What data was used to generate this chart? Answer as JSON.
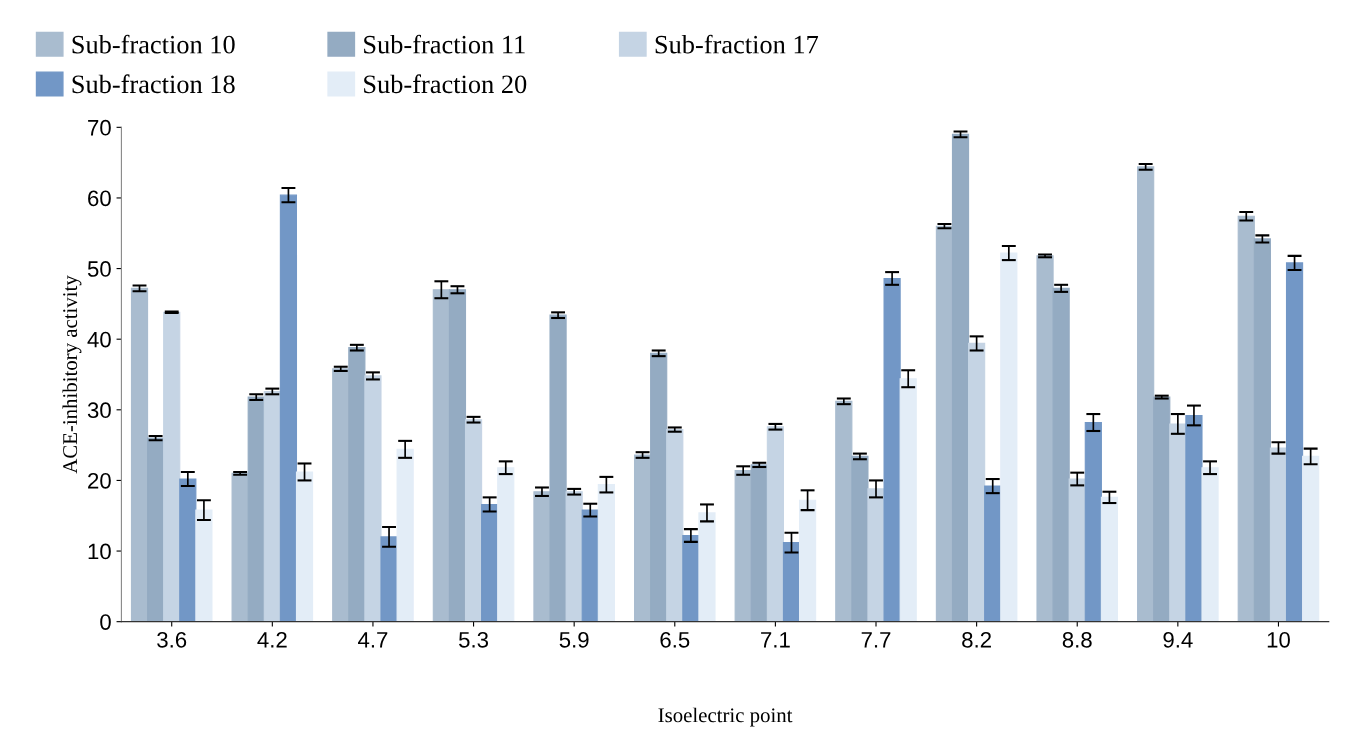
{
  "chart_data": {
    "type": "bar",
    "xlabel": "Isoelectric point",
    "ylabel": "ACE-inhibitory activity",
    "categories": [
      "3.6",
      "4.2",
      "4.7",
      "5.3",
      "5.9",
      "6.5",
      "7.1",
      "7.7",
      "8.2",
      "8.8",
      "9.4",
      "10"
    ],
    "series": [
      {
        "name": "Sub-fraction 10",
        "color": "#a9bccf",
        "values": [
          47.2,
          21,
          35.8,
          47,
          18.4,
          23.6,
          21.4,
          31.2,
          56,
          51.8,
          64.4,
          57.4
        ],
        "errors": [
          0.4,
          0.2,
          0.3,
          1.2,
          0.6,
          0.4,
          0.6,
          0.4,
          0.3,
          0.2,
          0.4,
          0.6
        ]
      },
      {
        "name": "Sub-fraction 11",
        "color": "#94abc2",
        "values": [
          26,
          31.8,
          38.8,
          47,
          43.4,
          38,
          22.2,
          23.4,
          69,
          47.2,
          31.8,
          54.2
        ],
        "errors": [
          0.3,
          0.4,
          0.4,
          0.5,
          0.4,
          0.4,
          0.3,
          0.4,
          0.4,
          0.5,
          0.2,
          0.5
        ]
      },
      {
        "name": "Sub-fraction 17",
        "color": "#c5d4e4",
        "values": [
          43.8,
          32.6,
          34.8,
          28.6,
          18.4,
          27.2,
          27.6,
          18.8,
          39.4,
          20.2,
          28,
          24.6
        ],
        "errors": [
          0.1,
          0.4,
          0.5,
          0.4,
          0.4,
          0.3,
          0.4,
          1.2,
          1.0,
          0.9,
          1.4,
          0.8
        ]
      },
      {
        "name": "Sub-fraction 18",
        "color": "#7297c6",
        "values": [
          20.2,
          60.4,
          12,
          16.6,
          15.8,
          12.2,
          11.2,
          48.6,
          19.2,
          28.2,
          29.2,
          50.8
        ],
        "errors": [
          1.0,
          1.0,
          1.4,
          1.0,
          0.9,
          0.9,
          1.4,
          0.9,
          1.0,
          1.2,
          1.4,
          1.0
        ]
      },
      {
        "name": "Sub-fraction 20",
        "color": "#e3edf7",
        "values": [
          15.8,
          21.2,
          24.4,
          21.8,
          19.4,
          15.4,
          17.2,
          34.4,
          52.2,
          17.6,
          21.8,
          23.4
        ],
        "errors": [
          1.4,
          1.2,
          1.2,
          0.9,
          1.1,
          1.2,
          1.4,
          1.2,
          1.0,
          0.8,
          0.9,
          1.1
        ]
      }
    ],
    "ylim": [
      0,
      70
    ],
    "yticks": [
      0,
      10,
      20,
      30,
      40,
      50,
      60,
      70
    ],
    "grid": false,
    "legend": "top"
  }
}
